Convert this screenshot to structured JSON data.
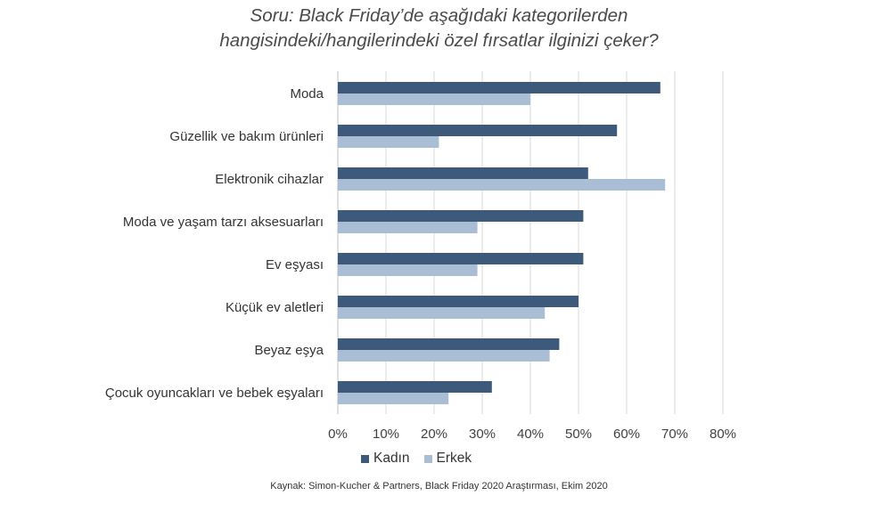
{
  "title_lines": [
    "Soru: Black Friday’de aşağıdaki kategorilerden",
    "hangisindeki/hangilerindeki özel fırsatlar ilginizi çeker?"
  ],
  "source": "Kaynak: Simon-Kucher & Partners, Black Friday 2020 Araştırması, Ekim 2020",
  "chart_data": {
    "type": "bar",
    "orientation": "horizontal",
    "categories": [
      "Moda",
      "Güzellik ve bakım ürünleri",
      "Elektronik cihazlar",
      "Moda ve yaşam tarzı aksesuarları",
      "Ev eşyası",
      "Küçük ev aletleri",
      "Beyaz eşya",
      "Çocuk oyuncakları ve bebek eşyaları"
    ],
    "series": [
      {
        "name": "Kadın",
        "color": "#3d5a7a",
        "values": [
          67,
          58,
          52,
          51,
          51,
          50,
          46,
          32
        ]
      },
      {
        "name": "Erkek",
        "color": "#a9bdd4",
        "values": [
          40,
          21,
          68,
          29,
          29,
          43,
          44,
          23
        ]
      }
    ],
    "xlim": [
      0,
      80
    ],
    "xticks": [
      "0%",
      "10%",
      "20%",
      "30%",
      "40%",
      "50%",
      "60%",
      "70%",
      "80%"
    ],
    "grid": true,
    "legend": "bottom"
  }
}
